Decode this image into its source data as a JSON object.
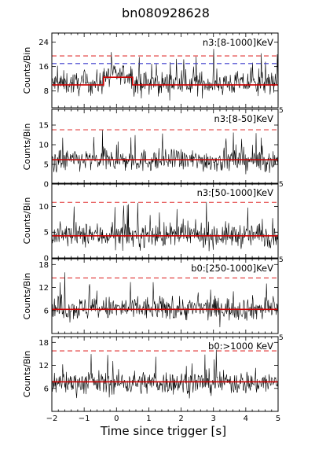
{
  "chart_data": {
    "type": "line",
    "title": "bn080928628",
    "xlabel": "Time since trigger [s]",
    "xlim": [
      -2,
      5
    ],
    "x_ticks": [
      "−2",
      "−1",
      "0",
      "1",
      "2",
      "3",
      "4",
      "5"
    ],
    "bin_width": 0.016,
    "colors": {
      "lightcurve": "#000000",
      "background": "#cc0000",
      "threshold_red": "#e03030",
      "threshold_blue": "#3a3acc"
    },
    "panels": [
      {
        "label": "n3:[8-1000]KeV",
        "ylabel": "Counts/Bin",
        "ylim": [
          2.5,
          27
        ],
        "y_ticks": [
          8,
          16,
          24
        ],
        "mean": 10.5,
        "spread": 3.2,
        "background_level": 10,
        "background_bump": {
          "from": -0.4,
          "to": 0.5,
          "level": 12.5
        },
        "threshold_red": 19.5,
        "threshold_blue": 17,
        "corner_label": ""
      },
      {
        "label": "n3:[8-50]KeV",
        "ylabel": "Counts/Bin",
        "ylim": [
          0,
          19
        ],
        "y_ticks": [
          0,
          5,
          10,
          15
        ],
        "mean": 6,
        "spread": 2.4,
        "background_level": 6.2,
        "threshold_red": 13.8,
        "corner_label": "5"
      },
      {
        "label": "n3:[50-1000]KeV",
        "ylabel": "Counts/Bin",
        "ylim": [
          0,
          14.5
        ],
        "y_ticks": [
          0,
          5,
          10
        ],
        "mean": 4.4,
        "spread": 2.0,
        "background_level": 4.3,
        "threshold_red": 10.8,
        "corner_label": "5"
      },
      {
        "label": "b0:[250-1000]KeV",
        "ylabel": "Counts/Bin",
        "ylim": [
          0,
          19.5
        ],
        "y_ticks": [
          6,
          12,
          18
        ],
        "mean": 6.5,
        "spread": 2.6,
        "background_level": 6.3,
        "threshold_red": 14.5,
        "corner_label": "5"
      },
      {
        "label": "b0:>1000 KeV",
        "ylabel": "Counts/Bin",
        "ylim": [
          0,
          19.5
        ],
        "y_ticks": [
          6,
          12,
          18
        ],
        "mean": 7.5,
        "spread": 2.6,
        "background_level": 7.7,
        "threshold_red": 15.8,
        "corner_label": "5"
      }
    ]
  }
}
